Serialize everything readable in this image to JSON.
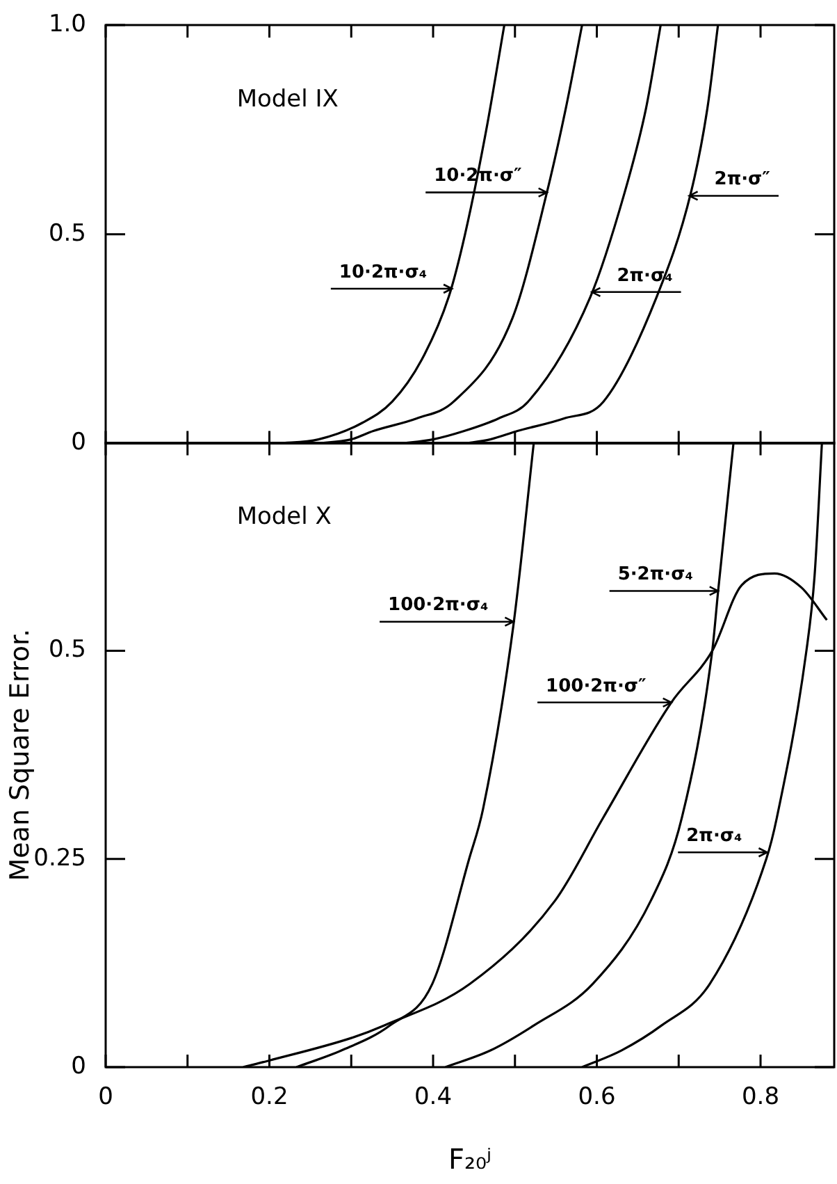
{
  "chart_data": [
    {
      "type": "line",
      "xlim": [
        0,
        0.89
      ],
      "xticks": [
        0,
        {
          "value": 0.1,
          "label": null
        },
        0.2,
        {
          "value": 0.3,
          "label": null
        },
        0.4,
        {
          "value": 0.5,
          "label": null
        },
        0.6,
        {
          "value": 0.7,
          "label": null
        },
        0.8
      ],
      "ylim": [
        0,
        1
      ],
      "yticks": [
        0,
        0.5,
        {
          "value": 1,
          "label": "1.0"
        }
      ],
      "tick_labels": "y",
      "marker": "none",
      "line_style": "solid",
      "legend": false,
      "series": [
        {
          "color": "#000000",
          "x": [
            0.21,
            0.26,
            0.314,
            0.35,
            0.386,
            0.419,
            0.439,
            0.465,
            0.487
          ],
          "values": [
            0,
            0.01,
            0.05,
            0.1,
            0.2,
            0.35,
            0.5,
            0.75,
            1.0
          ]
        },
        {
          "color": "#000000",
          "x": [
            0.256,
            0.3,
            0.327,
            0.38,
            0.425,
            0.497,
            0.539,
            0.562,
            0.582
          ],
          "values": [
            0,
            0.01,
            0.03,
            0.06,
            0.1,
            0.3,
            0.6,
            0.8,
            1.0
          ]
        },
        {
          "color": "#000000",
          "x": [
            0.36,
            0.4,
            0.438,
            0.48,
            0.516,
            0.592,
            0.634,
            0.66,
            0.678
          ],
          "values": [
            0,
            0.01,
            0.03,
            0.06,
            0.1,
            0.35,
            0.6,
            0.8,
            1.0
          ]
        },
        {
          "color": "#000000",
          "x": [
            0.438,
            0.47,
            0.503,
            0.56,
            0.608,
            0.673,
            0.715,
            0.735,
            0.748
          ],
          "values": [
            0,
            0.01,
            0.03,
            0.06,
            0.1,
            0.35,
            0.6,
            0.8,
            1.0
          ]
        }
      ],
      "annotations": [
        "Model IX",
        {
          "text": "10·2π·σ″",
          "x": 0.539,
          "y": 0.6
        },
        {
          "text": "10·2π·σ₄",
          "x": 0.423,
          "y": 0.37
        },
        {
          "text": "2π·σ″",
          "x": 0.713,
          "y": 0.592
        },
        {
          "text": "2π·σ₄",
          "x": 0.594,
          "y": 0.362
        }
      ]
    },
    {
      "type": "line",
      "xlabel": "F₂₀ʲ",
      "ylabel": "Mean Square Error.",
      "xlim": [
        0,
        0.89
      ],
      "xticks": [
        0,
        {
          "value": 0.1,
          "label": null
        },
        0.2,
        {
          "value": 0.3,
          "label": null
        },
        0.4,
        {
          "value": 0.5,
          "label": null
        },
        0.6,
        {
          "value": 0.7,
          "label": null
        },
        0.8
      ],
      "ylim": [
        0,
        0.75
      ],
      "yticks": [
        0,
        0.25,
        0.5
      ],
      "marker": "none",
      "line_style": "solid",
      "legend": false,
      "series": [
        {
          "color": "#000000",
          "x": [
            0.233,
            0.288,
            0.347,
            0.399,
            0.444,
            0.461,
            0.498,
            0.523
          ],
          "values": [
            0,
            0.02,
            0.05,
            0.1,
            0.25,
            0.31,
            0.53,
            0.75
          ]
        },
        {
          "color": "#000000",
          "x": [
            0.168,
            0.2,
            0.3,
            0.34,
            0.445,
            0.549,
            0.608,
            0.691,
            0.741,
            0.777,
            0.817,
            0.85,
            0.881
          ],
          "values": [
            0,
            0.008,
            0.035,
            0.05,
            0.1,
            0.2,
            0.3,
            0.438,
            0.5,
            0.579,
            0.593,
            0.576,
            0.537
          ]
        },
        {
          "color": "#000000",
          "x": [
            0.415,
            0.47,
            0.523,
            0.595,
            0.666,
            0.704,
            0.741,
            0.748,
            0.767
          ],
          "values": [
            0,
            0.02,
            0.05,
            0.1,
            0.2,
            0.3,
            0.5,
            0.57,
            0.75
          ]
        },
        {
          "color": "#000000",
          "x": [
            0.582,
            0.63,
            0.679,
            0.738,
            0.807,
            0.82,
            0.856,
            0.866,
            0.875
          ],
          "values": [
            0,
            0.02,
            0.05,
            0.1,
            0.25,
            0.3,
            0.5,
            0.59,
            0.75
          ]
        }
      ],
      "annotations": [
        "Model X",
        {
          "text": "100·2π·σ₄",
          "x": 0.498,
          "y": 0.535
        },
        {
          "text": "5·2π·σ₄",
          "x": 0.748,
          "y": 0.572
        },
        {
          "text": "100·2π·σ″",
          "x": 0.691,
          "y": 0.438
        },
        {
          "text": "2π·σ₄",
          "x": 0.808,
          "y": 0.258
        }
      ]
    }
  ]
}
